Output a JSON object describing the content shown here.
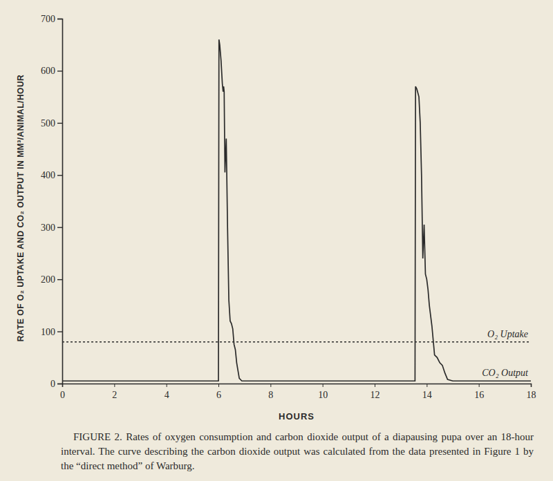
{
  "chart_data": {
    "type": "line",
    "x_label": "HOURS",
    "y_label": "RATE OF O₂ UPTAKE AND CO₂ OUTPUT IN MM³/ANIMAL/HOUR",
    "caption": "FIGURE 2. Rates of oxygen consumption and carbon dioxide output of a diapausing pupa over an 18-hour interval. The curve describing the carbon dioxide output was calculated from the data presented in Figure 1 by the “direct method” of Warburg.",
    "x": [
      0,
      6.0,
      6.02,
      6.05,
      6.1,
      6.15,
      6.18,
      6.2,
      6.22,
      6.25,
      6.3,
      6.35,
      6.4,
      6.45,
      6.5,
      6.55,
      6.6,
      6.65,
      6.7,
      6.75,
      6.8,
      6.9,
      7.0,
      13.55,
      13.57,
      13.62,
      13.7,
      13.75,
      13.8,
      13.85,
      13.9,
      13.95,
      14.0,
      14.05,
      14.1,
      14.2,
      14.3,
      14.4,
      14.5,
      14.6,
      14.7,
      14.8,
      15.0,
      18
    ],
    "series": [
      {
        "name": "O₂ Uptake",
        "color": "#2b2b2b",
        "line_style": "dotted",
        "values": [
          80,
          80,
          80,
          80,
          80,
          80,
          80,
          80,
          80,
          80,
          80,
          80,
          80,
          80,
          80,
          80,
          80,
          80,
          80,
          80,
          80,
          80,
          80,
          80,
          80,
          80,
          80,
          80,
          80,
          80,
          80,
          80,
          80,
          80,
          80,
          80,
          80,
          80,
          80,
          80,
          80,
          80,
          80,
          80
        ]
      },
      {
        "name": "CO₂ Output",
        "color": "#2b2b2b",
        "line_style": "solid",
        "values": [
          5,
          5,
          660,
          650,
          620,
          575,
          560,
          570,
          560,
          405,
          470,
          300,
          160,
          120,
          115,
          105,
          75,
          65,
          40,
          25,
          10,
          5,
          5,
          5,
          570,
          565,
          550,
          500,
          400,
          240,
          305,
          210,
          200,
          180,
          150,
          110,
          55,
          50,
          40,
          35,
          20,
          8,
          5,
          5
        ]
      }
    ],
    "xlim": [
      0,
      18
    ],
    "xticks": [
      0,
      2,
      4,
      6,
      8,
      10,
      12,
      14,
      16,
      18
    ],
    "ylim": [
      0,
      700
    ],
    "yticks": [
      0,
      100,
      200,
      300,
      400,
      500,
      600,
      700
    ],
    "grid": false
  }
}
